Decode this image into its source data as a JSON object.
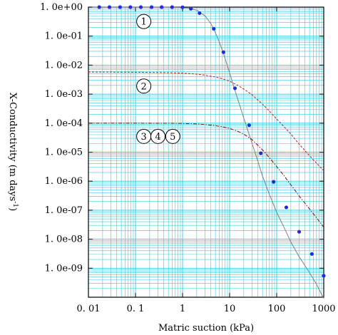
{
  "chart_data": {
    "type": "line",
    "xlabel": "Matric suction (kPa)",
    "ylabel_main": "X-Conductivity (m days",
    "ylabel_sup": "-1",
    "ylabel_close": ")",
    "xscale": "log",
    "yscale": "log",
    "xlim": [
      0.01,
      1000
    ],
    "ylim": [
      1e-10,
      1
    ],
    "grid": true,
    "x_ticks": [
      {
        "value": 0.01,
        "label": "0. 01"
      },
      {
        "value": 0.1,
        "label": "0. 1"
      },
      {
        "value": 1,
        "label": "1"
      },
      {
        "value": 10,
        "label": "10"
      },
      {
        "value": 100,
        "label": "100"
      },
      {
        "value": 1000,
        "label": "1000"
      }
    ],
    "y_ticks": [
      {
        "value": 1,
        "label": "1. 0e+00"
      },
      {
        "value": 0.1,
        "label": "1. 0e-01"
      },
      {
        "value": 0.01,
        "label": "1. 0e-02"
      },
      {
        "value": 0.001,
        "label": "1. 0e-03"
      },
      {
        "value": 0.0001,
        "label": "1. 0e-04"
      },
      {
        "value": 1e-05,
        "label": "1. 0e-05"
      },
      {
        "value": 1e-06,
        "label": "1. 0e-06"
      },
      {
        "value": 1e-07,
        "label": "1. 0e-07"
      },
      {
        "value": 1e-08,
        "label": "1. 0e-08"
      },
      {
        "value": 1e-09,
        "label": "1. 0e-09"
      }
    ],
    "series": [
      {
        "style": "solid-with-markers",
        "color": "#808080",
        "marker_color": "#1f2fd6",
        "x": [
          0.012,
          0.1,
          0.5,
          1.0,
          1.5,
          2.0,
          3.0,
          4.0,
          5.0,
          6.0,
          7.0,
          8.0,
          10,
          12,
          15,
          20,
          25,
          30,
          40,
          50,
          70,
          100,
          150,
          200,
          300,
          500,
          700,
          1000
        ],
        "y": [
          1.0,
          1.0,
          1.0,
          0.97,
          0.9,
          0.78,
          0.5,
          0.27,
          0.13,
          0.065,
          0.032,
          0.017,
          0.0055,
          0.002,
          0.00065,
          0.00015,
          5e-05,
          2e-05,
          4.8e-06,
          1.5e-06,
          3.5e-07,
          8.5e-08,
          2.2e-08,
          8e-09,
          2.5e-09,
          7e-10,
          2.8e-10,
          9e-11
        ],
        "markers_x": [
          0.017,
          0.028,
          0.047,
          0.078,
          0.13,
          0.22,
          0.36,
          0.6,
          1.0,
          1.5,
          2.3,
          4.6,
          7.4,
          13,
          26,
          46,
          86,
          160,
          300,
          560,
          1000
        ],
        "markers_y": [
          1.0,
          1.0,
          1.0,
          1.0,
          1.0,
          1.0,
          1.0,
          1.0,
          0.99,
          0.88,
          0.62,
          0.18,
          0.028,
          0.0016,
          8.5e-05,
          9.2e-06,
          9.5e-07,
          1.25e-07,
          1.8e-08,
          3.1e-09,
          5.5e-10
        ]
      },
      {
        "style": "dashed",
        "color": "#c81e1e",
        "x": [
          0.01,
          0.1,
          0.5,
          1.0,
          2.0,
          3.0,
          5.0,
          7.0,
          10,
          15,
          20,
          30,
          50,
          70,
          100,
          150,
          200,
          300,
          500,
          700,
          1000
        ],
        "y": [
          0.0058,
          0.0057,
          0.0055,
          0.0053,
          0.0049,
          0.0045,
          0.0039,
          0.0034,
          0.0028,
          0.002,
          0.0015,
          0.00095,
          0.00045,
          0.00026,
          0.00014,
          7e-05,
          4.2e-05,
          1.9e-05,
          7.5e-06,
          4.2e-06,
          2.3e-06
        ]
      },
      {
        "style": "dash-dot",
        "color": "#7a0f0f",
        "x": [
          0.01,
          0.1,
          0.5,
          1.0,
          2.0,
          3.0,
          5.0,
          7.0,
          10,
          15,
          20,
          30,
          50,
          70,
          100,
          150,
          200,
          300,
          500,
          700,
          1000
        ],
        "y": [
          0.0001,
          0.0001,
          9.95e-05,
          9.8e-05,
          9.4e-05,
          9e-05,
          8.2e-05,
          7.5e-05,
          6.6e-05,
          5.2e-05,
          4.2e-05,
          2.7e-05,
          1.2e-05,
          6.5e-06,
          3.2e-06,
          1.4e-06,
          7.5e-07,
          3.1e-07,
          1.1e-07,
          5.5e-08,
          2.6e-08
        ]
      }
    ],
    "annotations": [
      {
        "text": "1",
        "x": 0.15,
        "y": 0.32
      },
      {
        "text": "2",
        "x": 0.15,
        "y": 0.0019
      },
      {
        "text": "3",
        "x": 0.15,
        "y": 3.5e-05
      },
      {
        "text": "4",
        "x": 0.3,
        "y": 3.5e-05
      },
      {
        "text": "5",
        "x": 0.62,
        "y": 3.5e-05
      }
    ]
  }
}
